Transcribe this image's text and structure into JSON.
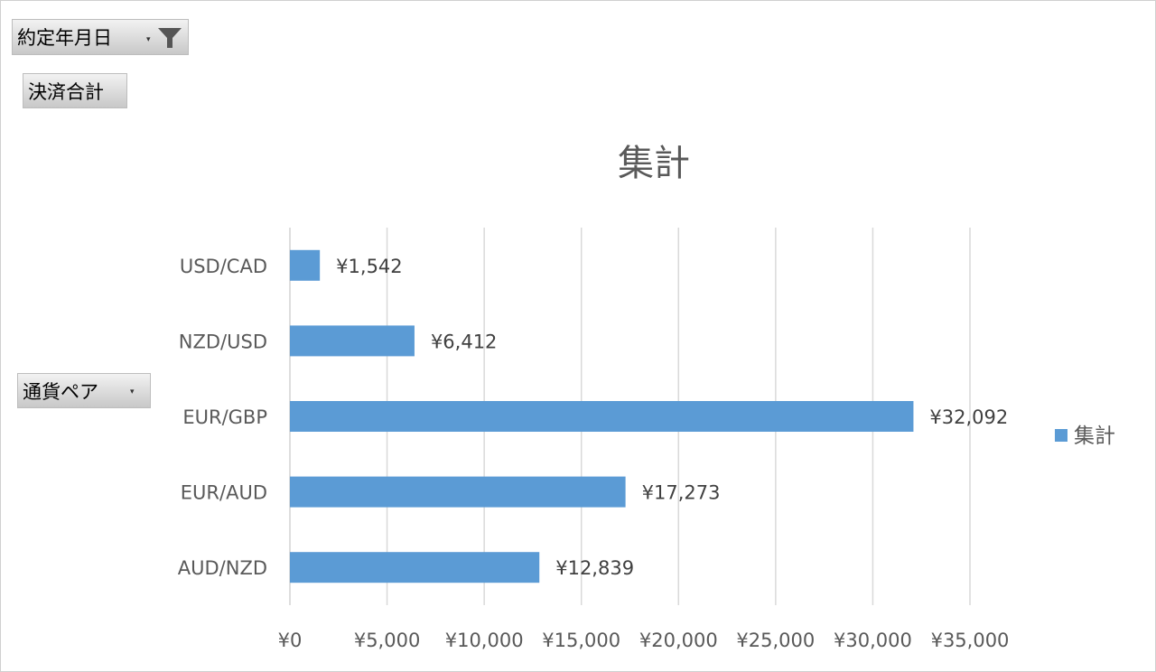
{
  "pivot_fields": {
    "date_filter": {
      "label": "約定年月日",
      "icon": "filter-icon",
      "dropdown_icon": "chevron-down-icon"
    },
    "value_field": {
      "label": "決済合計"
    },
    "row_field": {
      "label": "通貨ペア",
      "dropdown_icon": "chevron-down-icon"
    }
  },
  "chart_data": {
    "type": "bar",
    "orientation": "horizontal",
    "title": "集計",
    "categories": [
      "USD/CAD",
      "NZD/USD",
      "EUR/GBP",
      "EUR/AUD",
      "AUD/NZD"
    ],
    "series": [
      {
        "name": "集計",
        "values": [
          1542,
          6412,
          32092,
          17273,
          12839
        ],
        "labels": [
          "¥1,542",
          "¥6,412",
          "¥32,092",
          "¥17,273",
          "¥12,839"
        ],
        "color": "#5b9bd5"
      }
    ],
    "xlim": [
      0,
      35000
    ],
    "xticks": [
      0,
      5000,
      10000,
      15000,
      20000,
      25000,
      30000,
      35000
    ],
    "xtick_labels": [
      "¥0",
      "¥5,000",
      "¥10,000",
      "¥15,000",
      "¥20,000",
      "¥25,000",
      "¥30,000",
      "¥35,000"
    ],
    "grid": "vertical",
    "legend": {
      "position": "right",
      "label": "集計"
    }
  }
}
